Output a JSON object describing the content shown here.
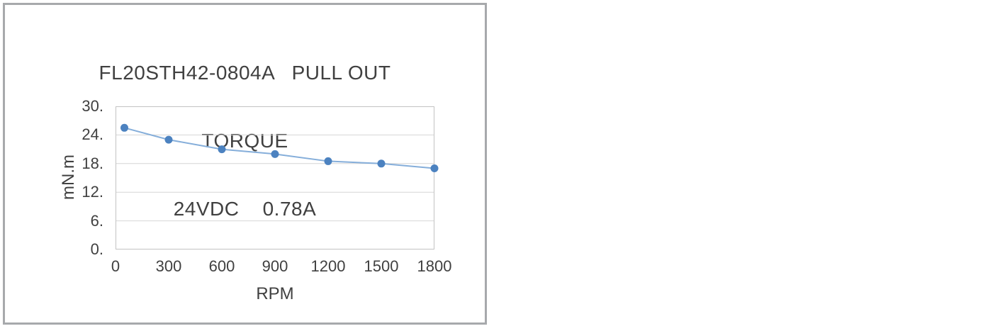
{
  "chart_data": {
    "type": "line",
    "title": "FL20STH42-0804A PULL OUT TORQUE 24VDC 0.78A",
    "title_lines": [
      "FL20STH42-0804A   PULL OUT",
      "TORQUE",
      "24VDC    0.78A"
    ],
    "xlabel": "RPM",
    "ylabel": "mN.m",
    "x": [
      50,
      300,
      600,
      900,
      1200,
      1500,
      1800
    ],
    "y": [
      25.5,
      23,
      21,
      20,
      18.5,
      18,
      17
    ],
    "xlim": [
      0,
      1800
    ],
    "ylim": [
      0,
      30
    ],
    "xticks": [
      0,
      300,
      600,
      900,
      1200,
      1500,
      1800
    ],
    "xtick_labels": [
      "0",
      "300",
      "600",
      "900",
      "1200",
      "1500",
      "1800"
    ],
    "yticks": [
      30,
      24,
      18,
      12,
      6,
      0
    ],
    "ytick_labels": [
      "30.",
      "24.",
      "18.",
      "12.",
      "6.",
      "0."
    ],
    "grid": "horizontal-only",
    "legend": "none",
    "colors": {
      "line": "#85aeda",
      "marker": "#4c82c0",
      "gridline": "#d6d6d6",
      "plot_border": "#c3c3c3",
      "frame_border": "#a7a9ac",
      "text": "#404040",
      "background": "#ffffff"
    }
  }
}
